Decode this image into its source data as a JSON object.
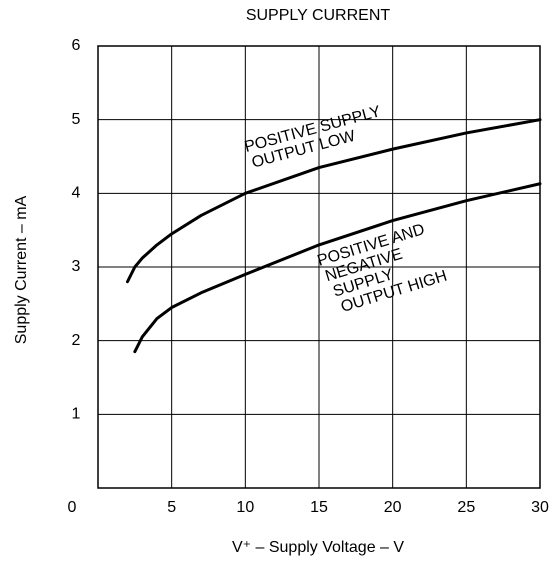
{
  "chart_data": {
    "type": "line",
    "title": "SUPPLY CURRENT",
    "xlabel": "V⁺ – Supply Voltage – V",
    "ylabel": "Supply Current – mA",
    "xlim": [
      0,
      30
    ],
    "ylim": [
      0,
      6
    ],
    "xticks": [
      0,
      5,
      10,
      15,
      20,
      25,
      30
    ],
    "yticks": [
      1,
      2,
      3,
      4,
      5,
      6
    ],
    "grid": true,
    "series": [
      {
        "name": [
          "POSITIVE SUPPLY",
          "OUTPUT LOW"
        ],
        "color": "#000000",
        "x": [
          2,
          2.5,
          3,
          4,
          5,
          7,
          10,
          15,
          20,
          25,
          30
        ],
        "values": [
          2.8,
          3.0,
          3.12,
          3.3,
          3.45,
          3.7,
          4.0,
          4.35,
          4.6,
          4.82,
          5.0
        ]
      },
      {
        "name": [
          "POSITIVE AND",
          "NEGATIVE",
          "SUPPLY",
          "OUTPUT HIGH"
        ],
        "color": "#000000",
        "x": [
          2.5,
          3,
          4,
          5,
          7,
          10,
          15,
          20,
          25,
          30
        ],
        "values": [
          1.85,
          2.05,
          2.3,
          2.45,
          2.65,
          2.9,
          3.3,
          3.63,
          3.9,
          4.13
        ]
      }
    ]
  }
}
